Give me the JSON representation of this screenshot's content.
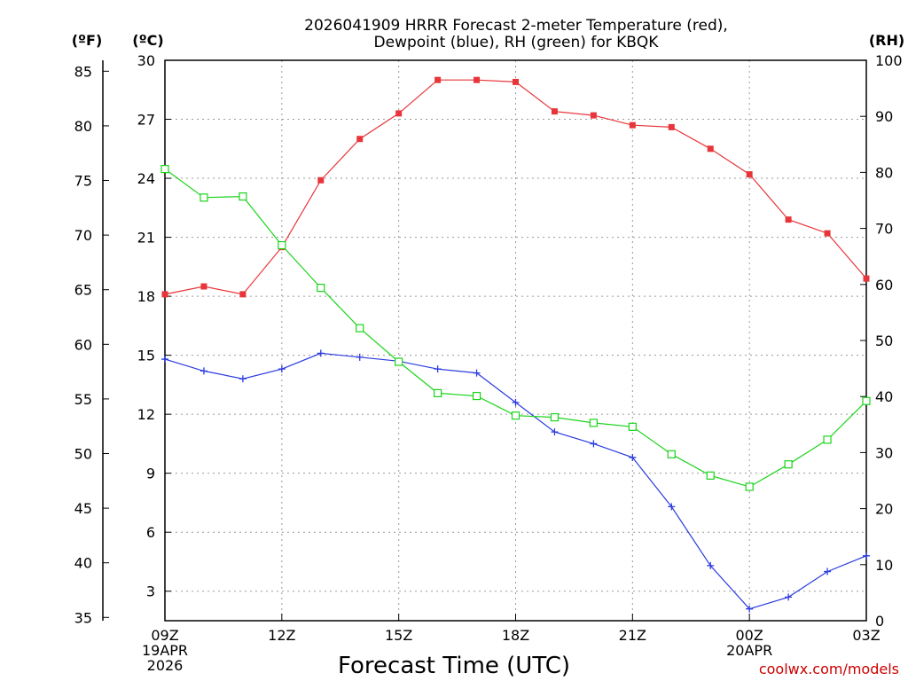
{
  "chart_data": {
    "type": "line",
    "title_line1": "2026041909 HRRR Forecast 2-meter Temperature (red),",
    "title_line2": "Dewpoint (blue), RH (green) for KBQK",
    "xlabel": "Forecast Time (UTC)",
    "credit": "coolwx.com/models",
    "unit_f": "(ºF)",
    "unit_c": "(ºC)",
    "unit_rh": "(RH)",
    "x_hours": [
      0,
      1,
      2,
      3,
      4,
      5,
      6,
      7,
      8,
      9,
      10,
      11,
      12,
      13,
      14,
      15,
      16,
      17,
      18
    ],
    "x_ticks": [
      {
        "hour": 0,
        "lines": [
          "09Z",
          "19APR",
          "2026"
        ]
      },
      {
        "hour": 3,
        "lines": [
          "12Z"
        ]
      },
      {
        "hour": 6,
        "lines": [
          "15Z"
        ]
      },
      {
        "hour": 9,
        "lines": [
          "18Z"
        ]
      },
      {
        "hour": 12,
        "lines": [
          "21Z"
        ]
      },
      {
        "hour": 15,
        "lines": [
          "00Z",
          "20APR"
        ]
      },
      {
        "hour": 18,
        "lines": [
          "03Z"
        ]
      }
    ],
    "celsius_axis": {
      "range": [
        1.5,
        30
      ],
      "ticks": [
        3,
        6,
        9,
        12,
        15,
        18,
        21,
        24,
        27,
        30
      ]
    },
    "fahrenheit_axis": {
      "ticks": [
        35,
        40,
        45,
        50,
        55,
        60,
        65,
        70,
        75,
        80,
        85
      ]
    },
    "rh_axis": {
      "range": [
        0,
        100
      ],
      "ticks": [
        0,
        10,
        20,
        30,
        40,
        50,
        60,
        70,
        80,
        90,
        100
      ]
    },
    "series": [
      {
        "name": "2-meter Temperature",
        "axis": "celsius",
        "color": "#e8353a",
        "marker": "filled-square",
        "values": [
          18.1,
          18.5,
          18.1,
          20.5,
          23.9,
          26.0,
          27.3,
          29.0,
          29.0,
          28.9,
          27.4,
          27.2,
          26.7,
          26.6,
          25.5,
          24.2,
          21.9,
          21.2,
          18.9
        ]
      },
      {
        "name": "Dewpoint",
        "axis": "celsius",
        "color": "#2b3be0",
        "marker": "plus",
        "values": [
          14.8,
          14.2,
          13.8,
          14.3,
          15.1,
          14.9,
          14.7,
          14.3,
          14.1,
          12.6,
          11.1,
          10.5,
          9.8,
          7.3,
          4.3,
          2.1,
          2.7,
          4.0,
          4.8
        ]
      },
      {
        "name": "RH",
        "axis": "rh",
        "color": "#1bd41b",
        "marker": "open-square",
        "values": [
          80.6,
          75.5,
          75.7,
          67.0,
          59.4,
          52.2,
          46.2,
          40.6,
          40.1,
          36.6,
          36.3,
          35.3,
          34.6,
          29.7,
          25.9,
          23.9,
          27.9,
          32.3,
          39.2
        ]
      }
    ]
  }
}
